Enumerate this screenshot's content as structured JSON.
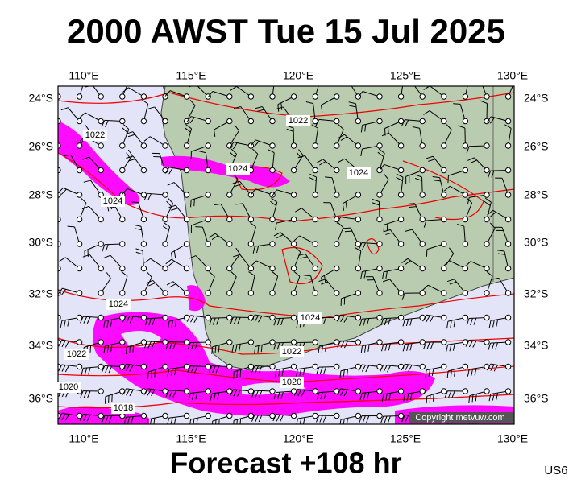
{
  "header": {
    "title": "2000 AWST Tue 15 Jul 2025"
  },
  "map": {
    "lon_labels": [
      "110°E",
      "115°E",
      "120°E",
      "125°E",
      "130°E"
    ],
    "lat_labels": [
      "24°S",
      "26°S",
      "28°S",
      "30°S",
      "32°S",
      "34°S",
      "36°S"
    ],
    "isobar_labels": [
      "1022",
      "1024",
      "1022",
      "1024",
      "1024",
      "1024",
      "1024",
      "1022",
      "1022",
      "1020",
      "1020",
      "1018"
    ],
    "credit": "Copyright metvuw.com"
  },
  "footer": {
    "forecast": "Forecast +108 hr",
    "code": "US6"
  }
}
